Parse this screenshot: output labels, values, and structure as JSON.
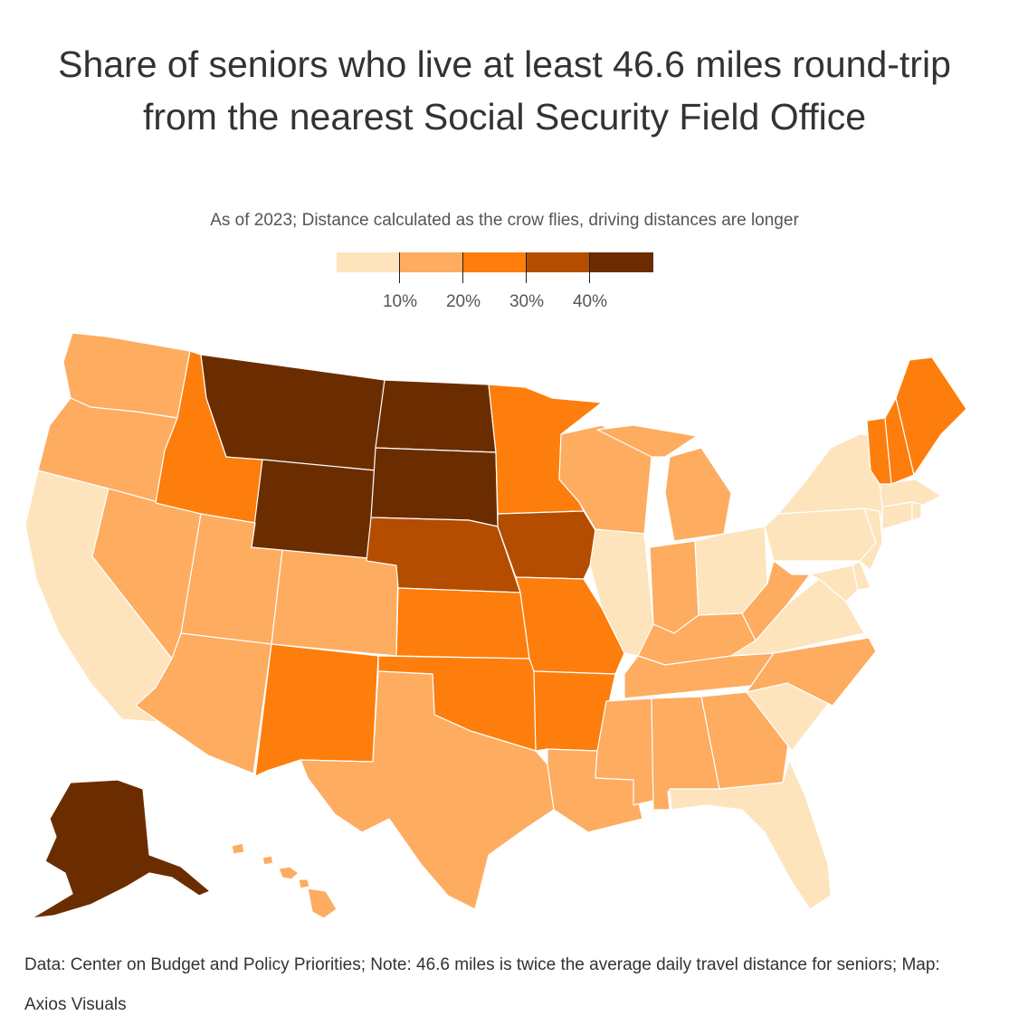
{
  "title": "Share of seniors who live at least 46.6 miles round-trip from the nearest Social Security Field Office",
  "subtitle": "As of 2023; Distance calculated as the crow flies, driving distances are longer",
  "legend": {
    "colors": [
      "#fde4bd",
      "#fdac60",
      "#fd7e0c",
      "#b44d00",
      "#6b2d00"
    ],
    "ticks": [
      "10%",
      "20%",
      "30%",
      "40%"
    ]
  },
  "footer": "Data: Center on Budget and Policy Priorities; Note: 46.6 miles is twice the average daily travel distance for seniors; Map: Axios Visuals",
  "chart_data": {
    "type": "choropleth",
    "bins": [
      {
        "range": "0-10%",
        "color": "#fde4bd"
      },
      {
        "range": "10-20%",
        "color": "#fdac60"
      },
      {
        "range": "20-30%",
        "color": "#fd7e0c"
      },
      {
        "range": "30-40%",
        "color": "#b44d00"
      },
      {
        "range": "40%+",
        "color": "#6b2d00"
      }
    ],
    "states": {
      "WA": 1,
      "OR": 1,
      "CA": 0,
      "NV": 1,
      "ID": 2,
      "MT": 4,
      "WY": 4,
      "UT": 1,
      "AZ": 1,
      "CO": 1,
      "NM": 2,
      "ND": 4,
      "SD": 4,
      "NE": 3,
      "KS": 2,
      "OK": 2,
      "TX": 1,
      "MN": 2,
      "IA": 3,
      "MO": 2,
      "AR": 2,
      "LA": 1,
      "WI": 1,
      "IL": 0,
      "MI": 1,
      "IN": 1,
      "OH": 0,
      "KY": 1,
      "TN": 1,
      "MS": 1,
      "AL": 1,
      "GA": 1,
      "FL": 0,
      "SC": 0,
      "NC": 1,
      "VA": 0,
      "WV": 1,
      "PA": 0,
      "NY": 0,
      "VT": 2,
      "NH": 2,
      "ME": 2,
      "MA": 0,
      "CT": 0,
      "RI": 0,
      "NJ": 0,
      "DE": 0,
      "MD": 0,
      "AK": 4,
      "HI": 1
    }
  }
}
